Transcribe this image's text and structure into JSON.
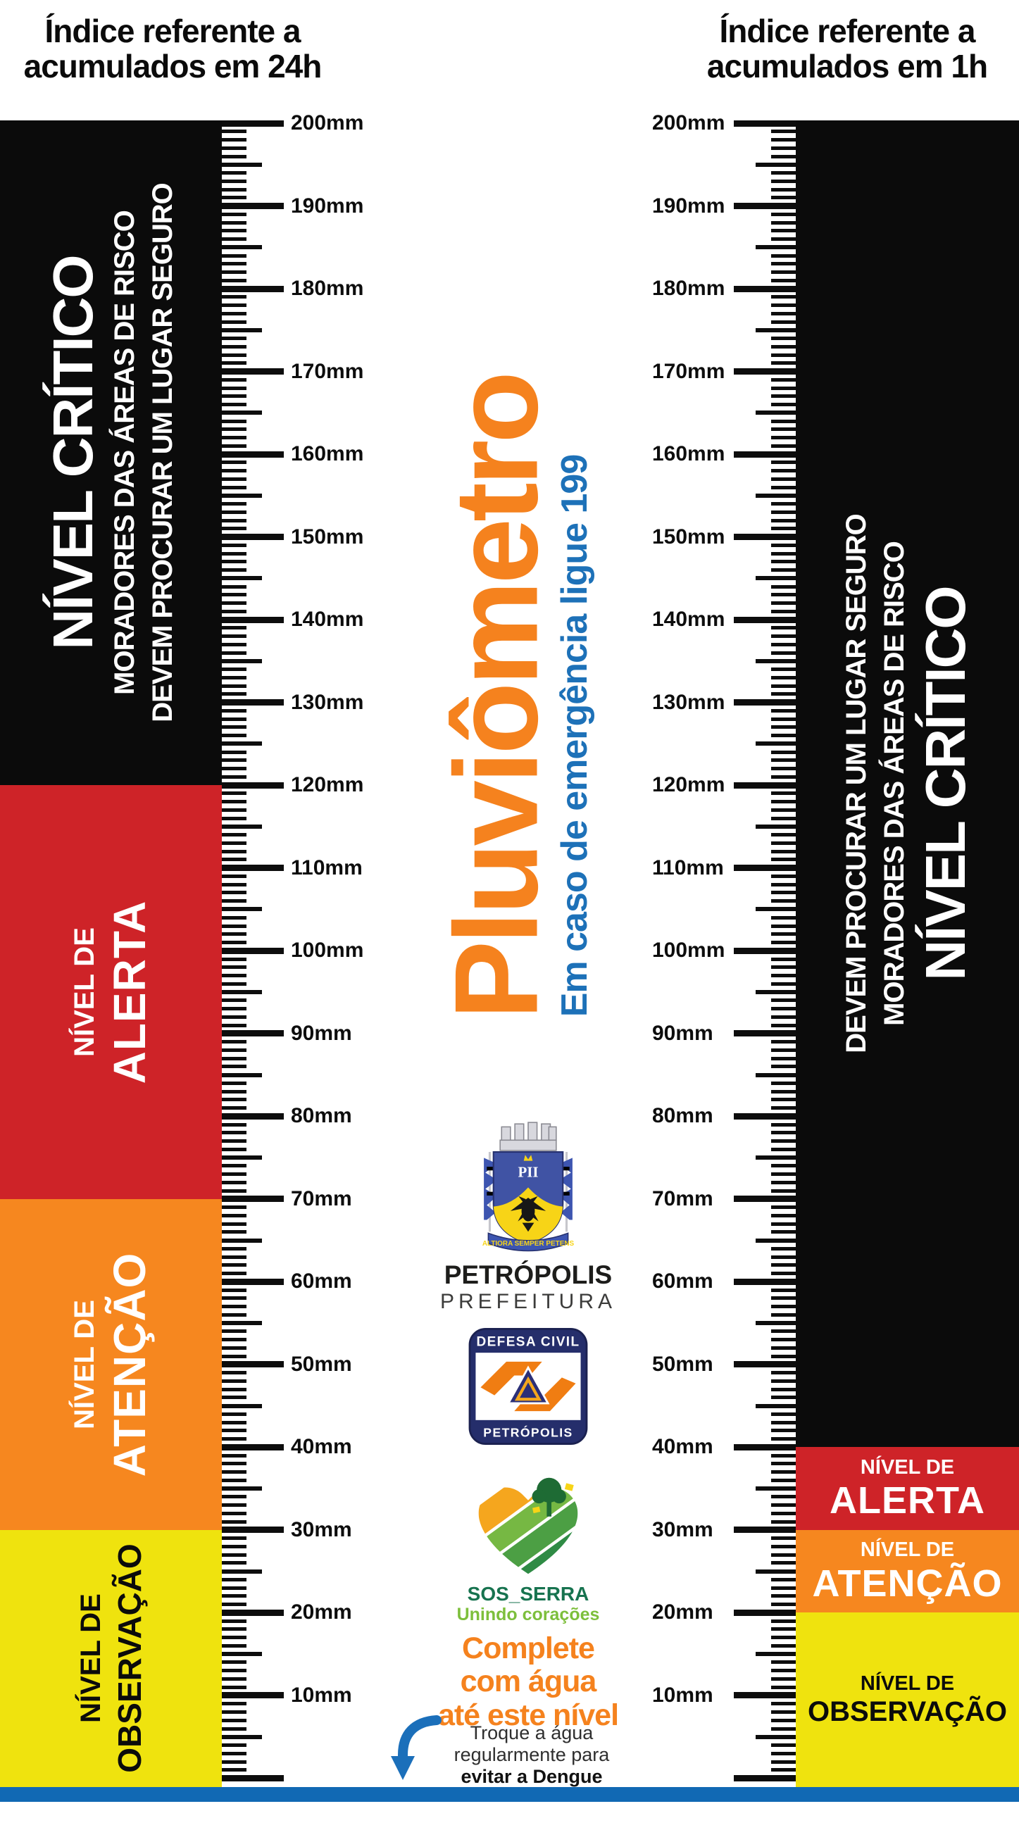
{
  "header_left": {
    "line1": "Índice referente a",
    "line2": "acumulados em 24h"
  },
  "header_right": {
    "line1": "Índice referente a",
    "line2": "acumulados em 1h"
  },
  "ruler": {
    "unit": "mm",
    "min": 0,
    "max": 200,
    "label_min": 10,
    "label_step": 10,
    "visible_labels": [
      200,
      190,
      180,
      170,
      160,
      150,
      140,
      130,
      120,
      110,
      100,
      90,
      80,
      70,
      60,
      50,
      40,
      30,
      20,
      10
    ]
  },
  "zones": {
    "left": {
      "items": [
        {
          "id": "critico",
          "color": "#0b0b0b",
          "top_mm": 200,
          "bottom_mm": 120,
          "orientation": "rotated",
          "lines": [
            {
              "text": "NÍVEL CRÍTICO",
              "cls": "z-title"
            },
            {
              "text": "MORADORES DAS ÁREAS DE RISCO",
              "cls": "z-sub"
            },
            {
              "text": "DEVEM PROCURAR UM LUGAR SEGURO",
              "cls": "z-sub"
            }
          ]
        },
        {
          "id": "alerta",
          "color": "#CE2328",
          "top_mm": 120,
          "bottom_mm": 70,
          "orientation": "rotated",
          "lines": [
            {
              "text": "NÍVEL DE",
              "cls": "z-small"
            },
            {
              "text": "ALERTA",
              "cls": "z-big"
            }
          ]
        },
        {
          "id": "atencao",
          "color": "#F6871F",
          "top_mm": 70,
          "bottom_mm": 30,
          "orientation": "rotated",
          "lines": [
            {
              "text": "NÍVEL DE",
              "cls": "z-small"
            },
            {
              "text": "ATENÇÃO",
              "cls": "z-big"
            }
          ]
        },
        {
          "id": "observacao",
          "color": "#EFE30E",
          "top_mm": 30,
          "bottom_mm": null,
          "orientation": "rotated",
          "lines": [
            {
              "text": "NÍVEL DE",
              "cls": "z-small dark"
            },
            {
              "text": "OBSERVAÇÃO",
              "cls": "z-big-obs dark"
            }
          ]
        }
      ]
    },
    "right": {
      "items": [
        {
          "id": "critico",
          "color": "#0b0b0b",
          "top_mm": 200,
          "bottom_mm": 40,
          "orientation": "rotated",
          "lines": [
            {
              "text": "DEVEM PROCURAR UM LUGAR SEGURO",
              "cls": "z-sub"
            },
            {
              "text": "MORADORES DAS ÁREAS DE RISCO",
              "cls": "z-sub"
            },
            {
              "text": "NÍVEL CRÍTICO",
              "cls": "z-title"
            }
          ]
        },
        {
          "id": "alerta",
          "color": "#CE2328",
          "top_mm": 40,
          "bottom_mm": 30,
          "orientation": "horizontal",
          "lines": [
            {
              "text": "NÍVEL DE",
              "cls": "h-small"
            },
            {
              "text": "ALERTA",
              "cls": "h-big"
            }
          ]
        },
        {
          "id": "atencao",
          "color": "#F6871F",
          "top_mm": 30,
          "bottom_mm": 20,
          "orientation": "horizontal",
          "lines": [
            {
              "text": "NÍVEL DE",
              "cls": "h-small"
            },
            {
              "text": "ATENÇÃO",
              "cls": "h-big"
            }
          ]
        },
        {
          "id": "observacao",
          "color": "#EFE30E",
          "top_mm": 20,
          "bottom_mm": null,
          "orientation": "horizontal",
          "lines": [
            {
              "text": "NÍVEL DE",
              "cls": "h-small dark"
            },
            {
              "text": "OBSERVAÇÃO",
              "cls": "h-obs dark"
            }
          ]
        }
      ]
    }
  },
  "center": {
    "title": "Pluviômetro",
    "emergency": "Em caso de emergência ligue 199",
    "fill": {
      "line1": "Complete",
      "line2": "com água",
      "line3": "até este nível"
    },
    "dengue": {
      "line1": "Troque a água",
      "line2": "regularmente para",
      "line3": "evitar a Dengue"
    }
  },
  "logos": {
    "petropolis": {
      "initials": "PII",
      "motto": "ALTIORA SEMPER PETENS",
      "name": "PETRÓPOLIS",
      "subtitle": "PREFEITURA"
    },
    "defesa_civil": {
      "top": "DEFESA CIVIL",
      "bottom": "PETRÓPOLIS"
    },
    "sos_serra": {
      "name": "SOS_SERRA",
      "tagline": "Unindo corações"
    }
  },
  "colors": {
    "critical_black": "#0b0b0b",
    "alert_red": "#CE2328",
    "attention_orange": "#F6871F",
    "observation_yellow": "#EFE30E",
    "title_orange": "#F5821E",
    "emergency_blue": "#1D71B8",
    "footer_blue": "#1169B4"
  }
}
